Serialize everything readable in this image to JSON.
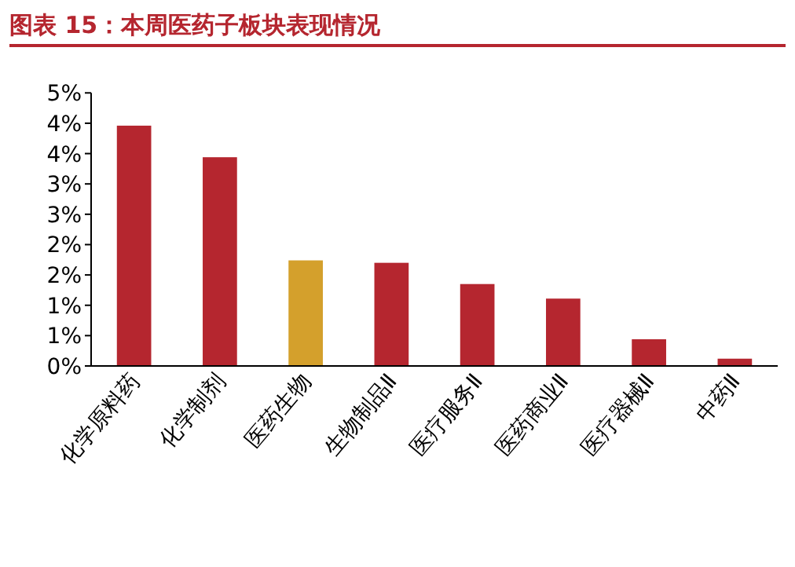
{
  "chart_data": {
    "type": "bar",
    "title": "图表 15：本周医药子板块表现情况",
    "categories": [
      "化学原料药",
      "化学制剂",
      "医药生物",
      "生物制品Ⅱ",
      "医疗服务Ⅱ",
      "医药商业Ⅱ",
      "医疗器械Ⅱ",
      "中药Ⅱ"
    ],
    "values": [
      3.96,
      3.44,
      1.74,
      1.7,
      1.35,
      1.11,
      0.44,
      0.12
    ],
    "colors": [
      "#b5262f",
      "#b5262f",
      "#d4a02c",
      "#b5262f",
      "#b5262f",
      "#b5262f",
      "#b5262f",
      "#b5262f"
    ],
    "ylim": [
      0,
      4.5
    ],
    "yticks": [
      {
        "value": 0,
        "label": "0%"
      },
      {
        "value": 0.5,
        "label": "1%"
      },
      {
        "value": 1,
        "label": "1%"
      },
      {
        "value": 1.5,
        "label": "2%"
      },
      {
        "value": 2,
        "label": "2%"
      },
      {
        "value": 2.5,
        "label": "3%"
      },
      {
        "value": 3,
        "label": "3%"
      },
      {
        "value": 3.5,
        "label": "4%"
      },
      {
        "value": 4,
        "label": "4%"
      },
      {
        "value": 4.5,
        "label": "5%"
      }
    ]
  }
}
